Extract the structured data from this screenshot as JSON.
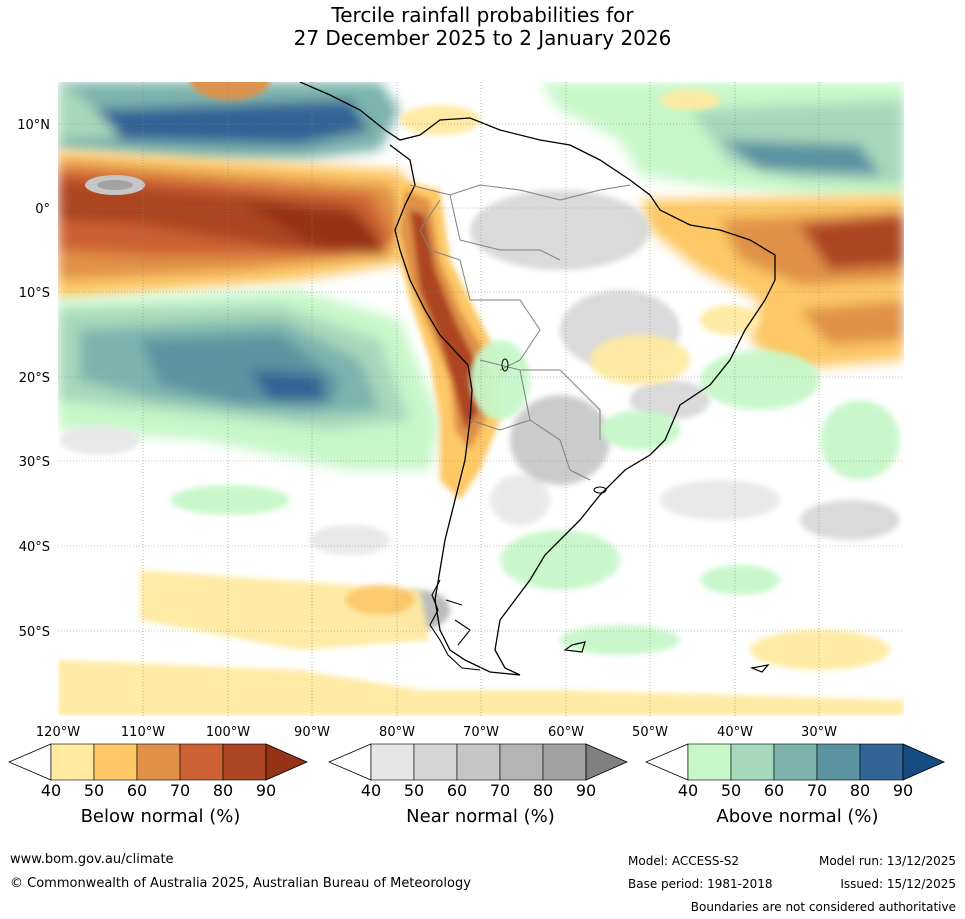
{
  "title": {
    "line1": "Tercile rainfall probabilities for",
    "line2": "27 December 2025 to 2 January 2026"
  },
  "map": {
    "lat_labels": [
      "10°N",
      "0°",
      "10°S",
      "20°S",
      "30°S",
      "40°S",
      "50°S"
    ],
    "lon_labels": [
      "120°W",
      "110°W",
      "100°W",
      "90°W",
      "80°W",
      "70°W",
      "60°W",
      "50°W",
      "40°W",
      "30°W"
    ],
    "ocean_color": "#ffffff",
    "gridline_color": "#888888"
  },
  "colorbars": [
    {
      "name": "below",
      "title": "Below normal (%)",
      "ticks": [
        "40",
        "50",
        "60",
        "70",
        "80",
        "90"
      ],
      "colors": [
        "#ffffff",
        "#ffeaa0",
        "#fdc865",
        "#e09047",
        "#cd6133",
        "#ad4424",
        "#953316"
      ]
    },
    {
      "name": "near",
      "title": "Near normal (%)",
      "ticks": [
        "40",
        "50",
        "60",
        "70",
        "80",
        "90"
      ],
      "colors": [
        "#ffffff",
        "#e6e6e6",
        "#d6d6d6",
        "#c6c6c6",
        "#b4b4b4",
        "#a2a2a2",
        "#808080"
      ]
    },
    {
      "name": "above",
      "title": "Above normal (%)",
      "ticks": [
        "40",
        "50",
        "60",
        "70",
        "80",
        "90"
      ],
      "colors": [
        "#ffffff",
        "#c7f7c9",
        "#a6d8bb",
        "#7cb4ad",
        "#5b93a1",
        "#326496",
        "#164c80"
      ]
    }
  ],
  "footer": {
    "website": "www.bom.gov.au/climate",
    "copyright": "© Commonwealth of Australia 2025, Australian Bureau of Meteorology",
    "model": "Model: ACCESS-S2",
    "base_period": "Base period: 1981-2018",
    "model_run": "Model run: 13/12/2025",
    "issued": "Issued: 15/12/2025",
    "disclaimer": "Boundaries are not considered authoritative"
  }
}
